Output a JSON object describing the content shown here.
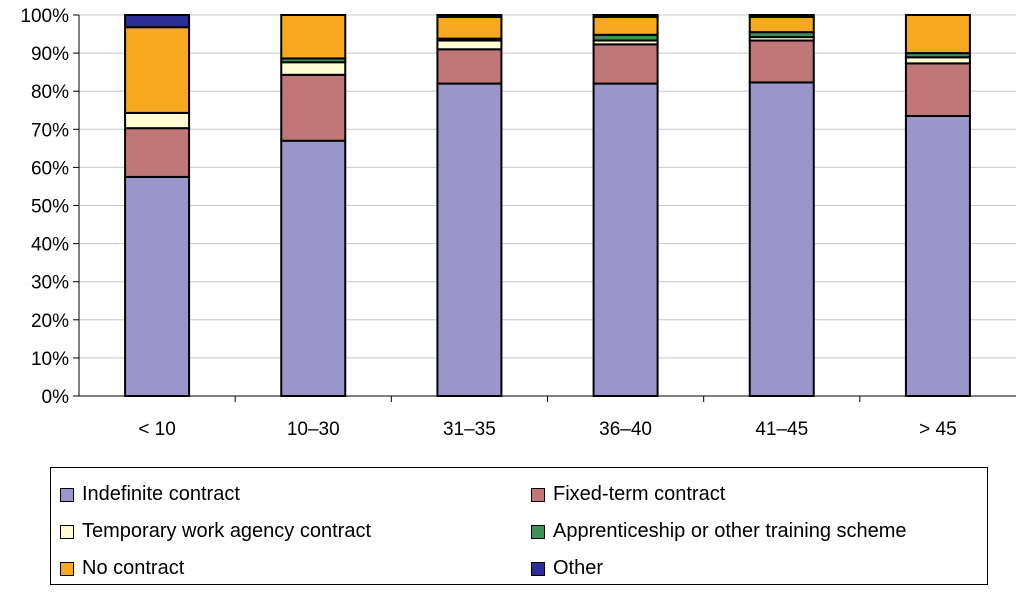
{
  "chart_data": {
    "type": "bar",
    "stacked": true,
    "categories": [
      "< 10",
      "10–30",
      "31–35",
      "36–40",
      "41–45",
      "> 45"
    ],
    "ylim": [
      0,
      100
    ],
    "yticks": [
      "0%",
      "10%",
      "20%",
      "30%",
      "40%",
      "50%",
      "60%",
      "70%",
      "80%",
      "90%",
      "100%"
    ],
    "grid": true,
    "legend_position": "bottom",
    "series": [
      {
        "name": "Indefinite contract",
        "color": "#9a96cc",
        "values": [
          57.5,
          67,
          82,
          82,
          82.3,
          73.5
        ]
      },
      {
        "name": "Fixed-term contract",
        "color": "#c07777",
        "values": [
          12.8,
          17.3,
          9,
          10.3,
          11,
          13.8
        ]
      },
      {
        "name": "Temporary work agency contract",
        "color": "#fffbd2",
        "values": [
          4,
          3.3,
          2.3,
          1,
          0.9,
          1.6
        ]
      },
      {
        "name": "Apprenticeship or other training scheme",
        "color": "#3f8f58",
        "values": [
          0,
          1,
          0.5,
          1.5,
          1.3,
          1.1
        ]
      },
      {
        "name": "No contract",
        "color": "#f6a81f",
        "values": [
          22.5,
          11.4,
          5.7,
          4.7,
          4,
          10
        ]
      },
      {
        "name": "Other",
        "color": "#2d2d96",
        "values": [
          3.2,
          0,
          0.5,
          0.5,
          0.5,
          0
        ]
      }
    ]
  }
}
